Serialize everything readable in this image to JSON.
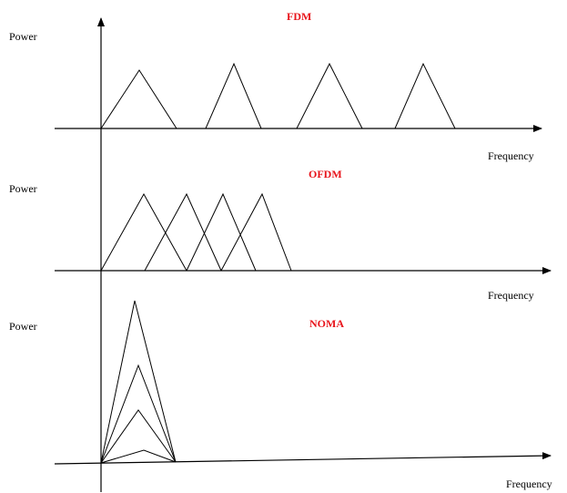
{
  "colors": {
    "title": "#e8141b",
    "line": "#000000",
    "background": "#ffffff"
  },
  "panels": [
    {
      "title": "FDM",
      "y_label": "Power",
      "x_label": "Frequency",
      "scheme": "frequency-division with separated sub-bands"
    },
    {
      "title": "OFDM",
      "y_label": "Power",
      "x_label": "Frequency",
      "scheme": "overlapping orthogonal sub-carriers"
    },
    {
      "title": "NOMA",
      "y_label": "Power",
      "x_label": "Frequency",
      "scheme": "power-domain superposition on one band"
    }
  ]
}
